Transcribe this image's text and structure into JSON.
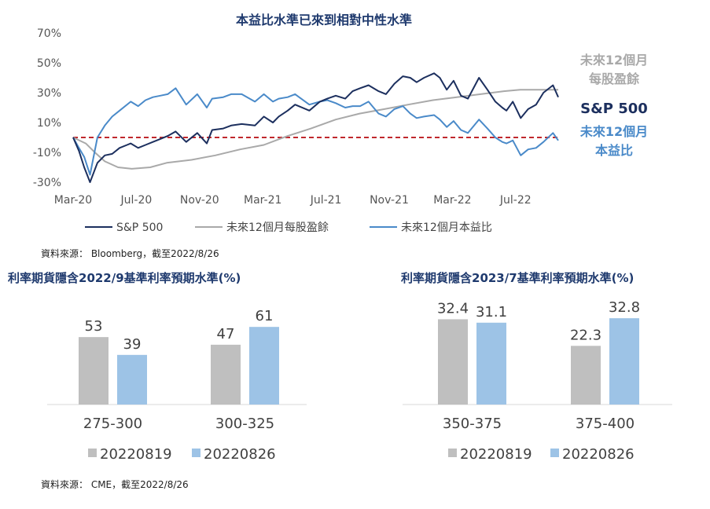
{
  "top_chart": {
    "title": "本益比水準已來到相對中性水準",
    "source": "資料來源： Bloomberg，截至2022/8/26",
    "chart_data": {
      "type": "line",
      "title": "本益比水準已來到相對中性水準",
      "ylim": [
        -30,
        70
      ],
      "y_ticks": [
        "70%",
        "50%",
        "30%",
        "10%",
        "-10%",
        "-30%"
      ],
      "x_tick_labels": [
        "Mar-20",
        "Jul-20",
        "Nov-20",
        "Mar-21",
        "Jul-21",
        "Nov-21",
        "Mar-22",
        "Jul-22"
      ],
      "x_range": [
        "2020-02-20",
        "2022-08-26"
      ],
      "reference_line_y": 0,
      "series": [
        {
          "name": "S&P 500",
          "color": "#1c2f5e",
          "right_label": "S&P 500",
          "points": [
            [
              "2020-02-20",
              0
            ],
            [
              "2020-03-02",
              -9
            ],
            [
              "2020-03-12",
              -20
            ],
            [
              "2020-03-23",
              -30
            ],
            [
              "2020-04-06",
              -17
            ],
            [
              "2020-04-20",
              -12
            ],
            [
              "2020-05-04",
              -11
            ],
            [
              "2020-05-18",
              -7
            ],
            [
              "2020-06-01",
              -5
            ],
            [
              "2020-06-08",
              -4
            ],
            [
              "2020-06-22",
              -7
            ],
            [
              "2020-07-06",
              -5
            ],
            [
              "2020-07-20",
              -3
            ],
            [
              "2020-08-03",
              -1
            ],
            [
              "2020-08-17",
              1
            ],
            [
              "2020-09-01",
              4
            ],
            [
              "2020-09-21",
              -3
            ],
            [
              "2020-10-12",
              3
            ],
            [
              "2020-10-30",
              -4
            ],
            [
              "2020-11-09",
              5
            ],
            [
              "2020-11-30",
              6
            ],
            [
              "2020-12-15",
              8
            ],
            [
              "2021-01-04",
              9
            ],
            [
              "2021-01-29",
              8
            ],
            [
              "2021-02-15",
              14
            ],
            [
              "2021-03-04",
              10
            ],
            [
              "2021-03-15",
              14
            ],
            [
              "2021-04-01",
              18
            ],
            [
              "2021-04-15",
              22
            ],
            [
              "2021-05-12",
              18
            ],
            [
              "2021-06-01",
              24
            ],
            [
              "2021-06-15",
              26
            ],
            [
              "2021-07-01",
              28
            ],
            [
              "2021-07-19",
              26
            ],
            [
              "2021-08-02",
              31
            ],
            [
              "2021-08-16",
              33
            ],
            [
              "2021-09-01",
              35
            ],
            [
              "2021-09-20",
              31
            ],
            [
              "2021-10-04",
              29
            ],
            [
              "2021-10-20",
              36
            ],
            [
              "2021-11-05",
              41
            ],
            [
              "2021-11-19",
              40
            ],
            [
              "2021-12-01",
              37
            ],
            [
              "2021-12-15",
              40
            ],
            [
              "2022-01-03",
              43
            ],
            [
              "2022-01-14",
              40
            ],
            [
              "2022-01-27",
              32
            ],
            [
              "2022-02-09",
              38
            ],
            [
              "2022-02-23",
              28
            ],
            [
              "2022-03-08",
              26
            ],
            [
              "2022-03-29",
              40
            ],
            [
              "2022-04-14",
              32
            ],
            [
              "2022-04-29",
              24
            ],
            [
              "2022-05-12",
              20
            ],
            [
              "2022-05-20",
              18
            ],
            [
              "2022-06-01",
              24
            ],
            [
              "2022-06-16",
              13
            ],
            [
              "2022-06-30",
              19
            ],
            [
              "2022-07-15",
              22
            ],
            [
              "2022-07-29",
              30
            ],
            [
              "2022-08-16",
              35
            ],
            [
              "2022-08-26",
              27
            ]
          ]
        },
        {
          "name": "未來12個月每股盈餘",
          "color": "#a9a9a9",
          "right_label": "未來12個月\n每股盈餘",
          "points": [
            [
              "2020-02-20",
              0
            ],
            [
              "2020-03-15",
              -4
            ],
            [
              "2020-04-01",
              -10
            ],
            [
              "2020-04-20",
              -16
            ],
            [
              "2020-05-15",
              -20
            ],
            [
              "2020-06-10",
              -21
            ],
            [
              "2020-07-15",
              -20
            ],
            [
              "2020-08-15",
              -17
            ],
            [
              "2020-10-01",
              -15
            ],
            [
              "2020-11-15",
              -12
            ],
            [
              "2021-01-01",
              -8
            ],
            [
              "2021-02-15",
              -5
            ],
            [
              "2021-04-01",
              1
            ],
            [
              "2021-05-15",
              6
            ],
            [
              "2021-07-01",
              12
            ],
            [
              "2021-08-15",
              16
            ],
            [
              "2021-10-01",
              19
            ],
            [
              "2021-11-15",
              22
            ],
            [
              "2022-01-01",
              25
            ],
            [
              "2022-02-15",
              27
            ],
            [
              "2022-04-01",
              29
            ],
            [
              "2022-05-15",
              31
            ],
            [
              "2022-06-15",
              32
            ],
            [
              "2022-07-15",
              32
            ],
            [
              "2022-08-26",
              32
            ]
          ]
        },
        {
          "name": "未來12個月本益比",
          "color": "#4a8ac9",
          "right_label": "未來12個月\n本益比",
          "points": [
            [
              "2020-02-20",
              0
            ],
            [
              "2020-03-02",
              -7
            ],
            [
              "2020-03-12",
              -13
            ],
            [
              "2020-03-23",
              -25
            ],
            [
              "2020-04-06",
              0
            ],
            [
              "2020-04-20",
              8
            ],
            [
              "2020-05-04",
              14
            ],
            [
              "2020-05-18",
              18
            ],
            [
              "2020-06-08",
              24
            ],
            [
              "2020-06-22",
              21
            ],
            [
              "2020-07-06",
              25
            ],
            [
              "2020-07-20",
              27
            ],
            [
              "2020-08-03",
              28
            ],
            [
              "2020-08-17",
              29
            ],
            [
              "2020-09-01",
              33
            ],
            [
              "2020-09-21",
              22
            ],
            [
              "2020-10-12",
              29
            ],
            [
              "2020-10-30",
              20
            ],
            [
              "2020-11-09",
              26
            ],
            [
              "2020-11-30",
              27
            ],
            [
              "2020-12-15",
              29
            ],
            [
              "2021-01-04",
              29
            ],
            [
              "2021-01-29",
              24
            ],
            [
              "2021-02-15",
              29
            ],
            [
              "2021-03-04",
              24
            ],
            [
              "2021-03-15",
              26
            ],
            [
              "2021-04-01",
              27
            ],
            [
              "2021-04-15",
              29
            ],
            [
              "2021-05-12",
              22
            ],
            [
              "2021-06-01",
              24
            ],
            [
              "2021-06-15",
              25
            ],
            [
              "2021-07-01",
              23
            ],
            [
              "2021-07-19",
              20
            ],
            [
              "2021-08-02",
              21
            ],
            [
              "2021-08-16",
              21
            ],
            [
              "2021-09-01",
              24
            ],
            [
              "2021-09-20",
              16
            ],
            [
              "2021-10-04",
              14
            ],
            [
              "2021-10-20",
              19
            ],
            [
              "2021-11-05",
              21
            ],
            [
              "2021-11-19",
              16
            ],
            [
              "2021-12-01",
              13
            ],
            [
              "2021-12-15",
              14
            ],
            [
              "2022-01-03",
              15
            ],
            [
              "2022-01-14",
              12
            ],
            [
              "2022-01-27",
              7
            ],
            [
              "2022-02-09",
              11
            ],
            [
              "2022-02-23",
              5
            ],
            [
              "2022-03-08",
              3
            ],
            [
              "2022-03-29",
              12
            ],
            [
              "2022-04-14",
              6
            ],
            [
              "2022-04-29",
              0
            ],
            [
              "2022-05-12",
              -3
            ],
            [
              "2022-05-20",
              -4
            ],
            [
              "2022-06-01",
              -2
            ],
            [
              "2022-06-16",
              -12
            ],
            [
              "2022-06-30",
              -8
            ],
            [
              "2022-07-15",
              -7
            ],
            [
              "2022-07-29",
              -3
            ],
            [
              "2022-08-16",
              3
            ],
            [
              "2022-08-26",
              -2
            ]
          ]
        }
      ]
    }
  },
  "bar_left": {
    "title": "利率期貨隱含2022/9基準利率預期水準(%)",
    "source": "資料來源： CME，截至2022/8/26",
    "chart_data": {
      "type": "bar",
      "title": "利率期貨隱含2022/9基準利率預期水準(%)",
      "ylim": [
        0,
        70
      ],
      "categories": [
        "275-300",
        "300-325"
      ],
      "series": [
        {
          "name": "20220819",
          "color": "#bfbfbf",
          "values": [
            53,
            47
          ],
          "labels": [
            "53",
            "47"
          ]
        },
        {
          "name": "20220826",
          "color": "#9dc3e6",
          "values": [
            39,
            61
          ],
          "labels": [
            "39",
            "61"
          ]
        }
      ]
    }
  },
  "bar_right": {
    "title": "利率期貨隱含2023/7基準利率預期水準(%)",
    "chart_data": {
      "type": "bar",
      "title": "利率期貨隱含2023/7基準利率預期水準(%)",
      "ylim": [
        0,
        40
      ],
      "categories": [
        "350-375",
        "375-400"
      ],
      "series": [
        {
          "name": "20220819",
          "color": "#bfbfbf",
          "values": [
            32.4,
            22.3
          ],
          "labels": [
            "32.4",
            "22.3"
          ]
        },
        {
          "name": "20220826",
          "color": "#9dc3e6",
          "values": [
            31.1,
            32.8
          ],
          "labels": [
            "31.1",
            "32.8"
          ]
        }
      ]
    }
  }
}
